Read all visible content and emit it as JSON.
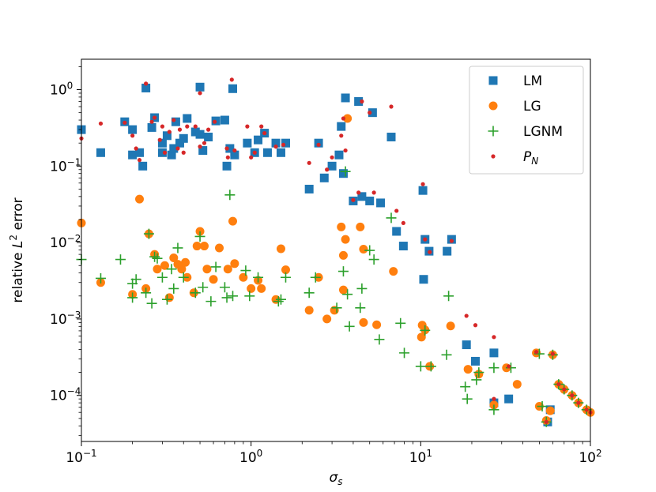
{
  "chart_data": {
    "type": "scatter",
    "xscale": "log",
    "yscale": "log",
    "xlim": [
      0.1,
      100
    ],
    "ylim": [
      2.5e-05,
      2.5
    ],
    "xlabel": "σs",
    "ylabel": "relative L² error",
    "x_ticks": [
      {
        "value": 0.1,
        "base": "10",
        "exp": "−1"
      },
      {
        "value": 1,
        "base": "10",
        "exp": "0"
      },
      {
        "value": 10,
        "base": "10",
        "exp": "1"
      },
      {
        "value": 100,
        "base": "10",
        "exp": "2"
      }
    ],
    "y_ticks": [
      {
        "value": 1,
        "base": "10",
        "exp": "0"
      },
      {
        "value": 0.1,
        "base": "10",
        "exp": "−1"
      },
      {
        "value": 0.01,
        "base": "10",
        "exp": "−2"
      },
      {
        "value": 0.001,
        "base": "10",
        "exp": "−3"
      },
      {
        "value": 0.0001,
        "base": "10",
        "exp": "−4"
      }
    ],
    "legend_position": "top-right",
    "series": [
      {
        "name": "LM",
        "marker": "square",
        "color": "#1f77b4",
        "points": [
          [
            0.1,
            0.3
          ],
          [
            0.13,
            0.15
          ],
          [
            0.18,
            0.38
          ],
          [
            0.2,
            0.3
          ],
          [
            0.2,
            0.14
          ],
          [
            0.22,
            0.15
          ],
          [
            0.23,
            0.1
          ],
          [
            0.24,
            1.05
          ],
          [
            0.26,
            0.32
          ],
          [
            0.27,
            0.43
          ],
          [
            0.3,
            0.15
          ],
          [
            0.3,
            0.2
          ],
          [
            0.32,
            0.25
          ],
          [
            0.34,
            0.14
          ],
          [
            0.35,
            0.17
          ],
          [
            0.36,
            0.38
          ],
          [
            0.38,
            0.2
          ],
          [
            0.4,
            0.23
          ],
          [
            0.42,
            0.42
          ],
          [
            0.47,
            0.28
          ],
          [
            0.5,
            1.08
          ],
          [
            0.5,
            0.26
          ],
          [
            0.52,
            0.16
          ],
          [
            0.56,
            0.24
          ],
          [
            0.62,
            0.39
          ],
          [
            0.7,
            0.4
          ],
          [
            0.72,
            0.1
          ],
          [
            0.75,
            0.17
          ],
          [
            0.78,
            1.03
          ],
          [
            0.8,
            0.14
          ],
          [
            0.95,
            0.2
          ],
          [
            1.05,
            0.15
          ],
          [
            1.1,
            0.22
          ],
          [
            1.2,
            0.27
          ],
          [
            1.25,
            0.15
          ],
          [
            1.4,
            0.2
          ],
          [
            1.5,
            0.15
          ],
          [
            1.6,
            0.2
          ],
          [
            2.2,
            0.05
          ],
          [
            2.5,
            0.2
          ],
          [
            2.7,
            0.07
          ],
          [
            3.0,
            0.1
          ],
          [
            3.3,
            0.14
          ],
          [
            3.4,
            0.33
          ],
          [
            3.5,
            0.08
          ],
          [
            3.6,
            0.78
          ],
          [
            4.0,
            0.035
          ],
          [
            4.3,
            0.7
          ],
          [
            4.5,
            0.04
          ],
          [
            5.0,
            0.035
          ],
          [
            5.2,
            0.5
          ],
          [
            5.8,
            0.033
          ],
          [
            6.7,
            0.24
          ],
          [
            7.2,
            0.014
          ],
          [
            7.9,
            0.009
          ],
          [
            10.3,
            0.048
          ],
          [
            10.4,
            0.0033
          ],
          [
            10.6,
            0.011
          ],
          [
            11.2,
            0.0077
          ],
          [
            14.3,
            0.0077
          ],
          [
            15.2,
            0.011
          ],
          [
            18.6,
            0.00046
          ],
          [
            21.0,
            0.00028
          ],
          [
            27.0,
            0.00036
          ],
          [
            27.0,
            8e-05
          ],
          [
            33.0,
            9e-05
          ],
          [
            56.0,
            4.5e-05
          ],
          [
            58.0,
            6.5e-05
          ]
        ]
      },
      {
        "name": "LG",
        "marker": "circle",
        "color": "#ff7f0e",
        "points": [
          [
            0.1,
            0.018
          ],
          [
            0.13,
            0.003
          ],
          [
            0.2,
            0.0021
          ],
          [
            0.22,
            0.037
          ],
          [
            0.24,
            0.0025
          ],
          [
            0.25,
            0.013
          ],
          [
            0.27,
            0.007
          ],
          [
            0.28,
            0.0045
          ],
          [
            0.31,
            0.005
          ],
          [
            0.33,
            0.0019
          ],
          [
            0.35,
            0.0063
          ],
          [
            0.37,
            0.0052
          ],
          [
            0.39,
            0.0045
          ],
          [
            0.41,
            0.0055
          ],
          [
            0.42,
            0.0035
          ],
          [
            0.46,
            0.0022
          ],
          [
            0.48,
            0.009
          ],
          [
            0.5,
            0.014
          ],
          [
            0.53,
            0.009
          ],
          [
            0.55,
            0.0045
          ],
          [
            0.6,
            0.0033
          ],
          [
            0.65,
            0.0085
          ],
          [
            0.73,
            0.0045
          ],
          [
            0.78,
            0.019
          ],
          [
            0.8,
            0.0053
          ],
          [
            0.9,
            0.0035
          ],
          [
            1.0,
            0.0025
          ],
          [
            1.1,
            0.0032
          ],
          [
            1.15,
            0.0025
          ],
          [
            1.4,
            0.0018
          ],
          [
            1.6,
            0.0044
          ],
          [
            1.5,
            0.0083
          ],
          [
            2.2,
            0.0013
          ],
          [
            2.5,
            0.0035
          ],
          [
            2.8,
            0.001
          ],
          [
            3.1,
            0.0013
          ],
          [
            3.4,
            0.016
          ],
          [
            3.5,
            0.0024
          ],
          [
            3.5,
            0.0068
          ],
          [
            3.6,
            0.011
          ],
          [
            3.7,
            0.42
          ],
          [
            4.4,
            0.016
          ],
          [
            4.6,
            0.0082
          ],
          [
            4.6,
            0.0009
          ],
          [
            5.5,
            0.00084
          ],
          [
            6.9,
            0.0042
          ],
          [
            10.1,
            0.00058
          ],
          [
            10.2,
            0.00083
          ],
          [
            10.6,
            0.00072
          ],
          [
            11.3,
            0.00024
          ],
          [
            15.0,
            0.00081
          ],
          [
            19.0,
            0.00022
          ],
          [
            22.0,
            0.00019
          ],
          [
            27.0,
            7.5e-05
          ],
          [
            32.0,
            0.00023
          ],
          [
            37.0,
            0.00014
          ],
          [
            48.0,
            0.00036
          ],
          [
            50.0,
            7.2e-05
          ],
          [
            55.0,
            4.7e-05
          ],
          [
            58.0,
            6.3e-05
          ],
          [
            60.0,
            0.00034
          ],
          [
            65.0,
            0.00014
          ],
          [
            70.0,
            0.00012
          ],
          [
            78.0,
            0.0001
          ],
          [
            85.0,
            8e-05
          ],
          [
            95.0,
            6.5e-05
          ],
          [
            100.0,
            6e-05
          ]
        ]
      },
      {
        "name": "LGNM",
        "marker": "plus",
        "color": "#2ca02c",
        "points": [
          [
            0.1,
            0.006
          ],
          [
            0.13,
            0.0034
          ],
          [
            0.17,
            0.006
          ],
          [
            0.2,
            0.0029
          ],
          [
            0.2,
            0.0019
          ],
          [
            0.21,
            0.0033
          ],
          [
            0.24,
            0.0022
          ],
          [
            0.25,
            0.013
          ],
          [
            0.26,
            0.0016
          ],
          [
            0.27,
            0.0065
          ],
          [
            0.28,
            0.0062
          ],
          [
            0.3,
            0.0035
          ],
          [
            0.32,
            0.0018
          ],
          [
            0.34,
            0.0045
          ],
          [
            0.35,
            0.0025
          ],
          [
            0.37,
            0.0085
          ],
          [
            0.4,
            0.0035
          ],
          [
            0.47,
            0.0022
          ],
          [
            0.5,
            0.012
          ],
          [
            0.52,
            0.0026
          ],
          [
            0.58,
            0.0017
          ],
          [
            0.62,
            0.0048
          ],
          [
            0.7,
            0.0026
          ],
          [
            0.72,
            0.0019
          ],
          [
            0.75,
            0.042
          ],
          [
            0.78,
            0.002
          ],
          [
            0.93,
            0.0043
          ],
          [
            0.98,
            0.002
          ],
          [
            1.1,
            0.0035
          ],
          [
            1.5,
            0.0018
          ],
          [
            1.6,
            0.0035
          ],
          [
            1.45,
            0.0017
          ],
          [
            2.2,
            0.0022
          ],
          [
            2.4,
            0.0035
          ],
          [
            3.2,
            0.0014
          ],
          [
            3.5,
            0.0042
          ],
          [
            3.6,
            0.085
          ],
          [
            3.7,
            0.0021
          ],
          [
            3.8,
            0.0008
          ],
          [
            4.4,
            0.0014
          ],
          [
            4.5,
            0.0025
          ],
          [
            5.0,
            0.0079
          ],
          [
            5.3,
            0.006
          ],
          [
            5.7,
            0.00054
          ],
          [
            6.7,
            0.021
          ],
          [
            7.6,
            0.00088
          ],
          [
            8.0,
            0.00036
          ],
          [
            10.0,
            0.00024
          ],
          [
            10.6,
            0.00071
          ],
          [
            11.5,
            0.00024
          ],
          [
            14.2,
            0.00034
          ],
          [
            14.6,
            0.002
          ],
          [
            18.3,
            0.00013
          ],
          [
            18.8,
            9e-05
          ],
          [
            21.3,
            0.00016
          ],
          [
            22.0,
            0.0002
          ],
          [
            27.0,
            0.00023
          ],
          [
            27.0,
            6.5e-05
          ],
          [
            34.0,
            0.00023
          ],
          [
            50.0,
            0.00035
          ],
          [
            52.0,
            7.2e-05
          ],
          [
            55.0,
            4.5e-05
          ],
          [
            60.0,
            0.00034
          ],
          [
            65.0,
            0.00014
          ],
          [
            70.0,
            0.00012
          ],
          [
            78.0,
            0.0001
          ],
          [
            85.0,
            8e-05
          ],
          [
            95.0,
            6.5e-05
          ]
        ]
      },
      {
        "name": "P_N",
        "marker": "dot",
        "color": "#d62728",
        "points": [
          [
            0.1,
            0.23
          ],
          [
            0.13,
            0.36
          ],
          [
            0.18,
            0.37
          ],
          [
            0.2,
            0.25
          ],
          [
            0.21,
            0.17
          ],
          [
            0.22,
            0.12
          ],
          [
            0.24,
            1.2
          ],
          [
            0.26,
            0.38
          ],
          [
            0.27,
            0.43
          ],
          [
            0.29,
            0.22
          ],
          [
            0.3,
            0.33
          ],
          [
            0.31,
            0.15
          ],
          [
            0.33,
            0.28
          ],
          [
            0.35,
            0.4
          ],
          [
            0.37,
            0.17
          ],
          [
            0.38,
            0.3
          ],
          [
            0.4,
            0.15
          ],
          [
            0.42,
            0.33
          ],
          [
            0.47,
            0.33
          ],
          [
            0.5,
            0.9
          ],
          [
            0.5,
            0.18
          ],
          [
            0.53,
            0.2
          ],
          [
            0.56,
            0.3
          ],
          [
            0.61,
            0.38
          ],
          [
            0.72,
            0.17
          ],
          [
            0.73,
            0.13
          ],
          [
            0.77,
            1.35
          ],
          [
            0.8,
            0.16
          ],
          [
            0.95,
            0.33
          ],
          [
            1.0,
            0.13
          ],
          [
            1.05,
            0.15
          ],
          [
            1.15,
            0.33
          ],
          [
            1.2,
            0.27
          ],
          [
            1.4,
            0.18
          ],
          [
            1.55,
            0.19
          ],
          [
            2.2,
            0.11
          ],
          [
            2.5,
            0.19
          ],
          [
            2.8,
            0.09
          ],
          [
            3.0,
            0.13
          ],
          [
            3.4,
            0.25
          ],
          [
            3.5,
            0.42
          ],
          [
            3.6,
            0.16
          ],
          [
            4.0,
            0.036
          ],
          [
            4.3,
            0.045
          ],
          [
            4.5,
            0.7
          ],
          [
            5.0,
            0.5
          ],
          [
            5.3,
            0.045
          ],
          [
            6.7,
            0.6
          ],
          [
            7.2,
            0.026
          ],
          [
            7.9,
            0.018
          ],
          [
            10.3,
            0.058
          ],
          [
            10.6,
            0.011
          ],
          [
            11.3,
            0.0075
          ],
          [
            15.2,
            0.0105
          ],
          [
            18.6,
            0.0011
          ],
          [
            21.0,
            0.00083
          ],
          [
            27.0,
            0.00058
          ],
          [
            27.0,
            9e-05
          ],
          [
            33.0,
            0.00024
          ],
          [
            48.0,
            0.00037
          ],
          [
            55.0,
            4.5e-05
          ],
          [
            60.0,
            0.00035
          ],
          [
            65.0,
            0.00014
          ],
          [
            70.0,
            0.00012
          ],
          [
            78.0,
            0.0001
          ],
          [
            85.0,
            8e-05
          ],
          [
            95.0,
            6.5e-05
          ],
          [
            100.0,
            6e-05
          ]
        ]
      }
    ]
  }
}
